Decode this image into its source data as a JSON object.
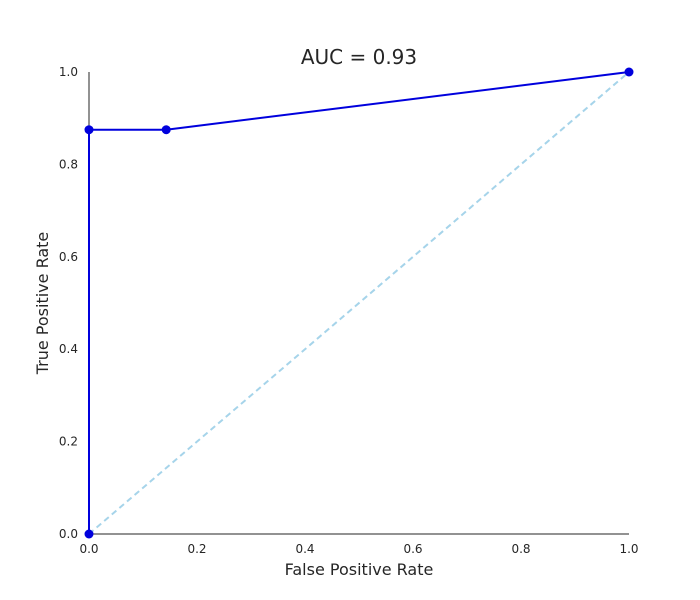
{
  "chart_data": {
    "type": "line",
    "title": "AUC = 0.93",
    "xlabel": "False Positive Rate",
    "ylabel": "True Positive Rate",
    "xlim": [
      0,
      1
    ],
    "ylim": [
      0,
      1
    ],
    "x_ticks": [
      "0.0",
      "0.2",
      "0.4",
      "0.6",
      "0.8",
      "1.0"
    ],
    "y_ticks": [
      "0.0",
      "0.2",
      "0.4",
      "0.6",
      "0.8",
      "1.0"
    ],
    "grid": false,
    "series": [
      {
        "x": [
          0.0,
          0.0,
          0.143,
          1.0
        ],
        "y": [
          0.0,
          0.875,
          0.875,
          1.0
        ],
        "color": "#0000dd",
        "style": "solid",
        "markers": true
      },
      {
        "x": [
          0.0,
          1.0
        ],
        "y": [
          0.0,
          1.0
        ],
        "color": "#a6d4ea",
        "style": "dashed",
        "markers": false
      }
    ]
  }
}
